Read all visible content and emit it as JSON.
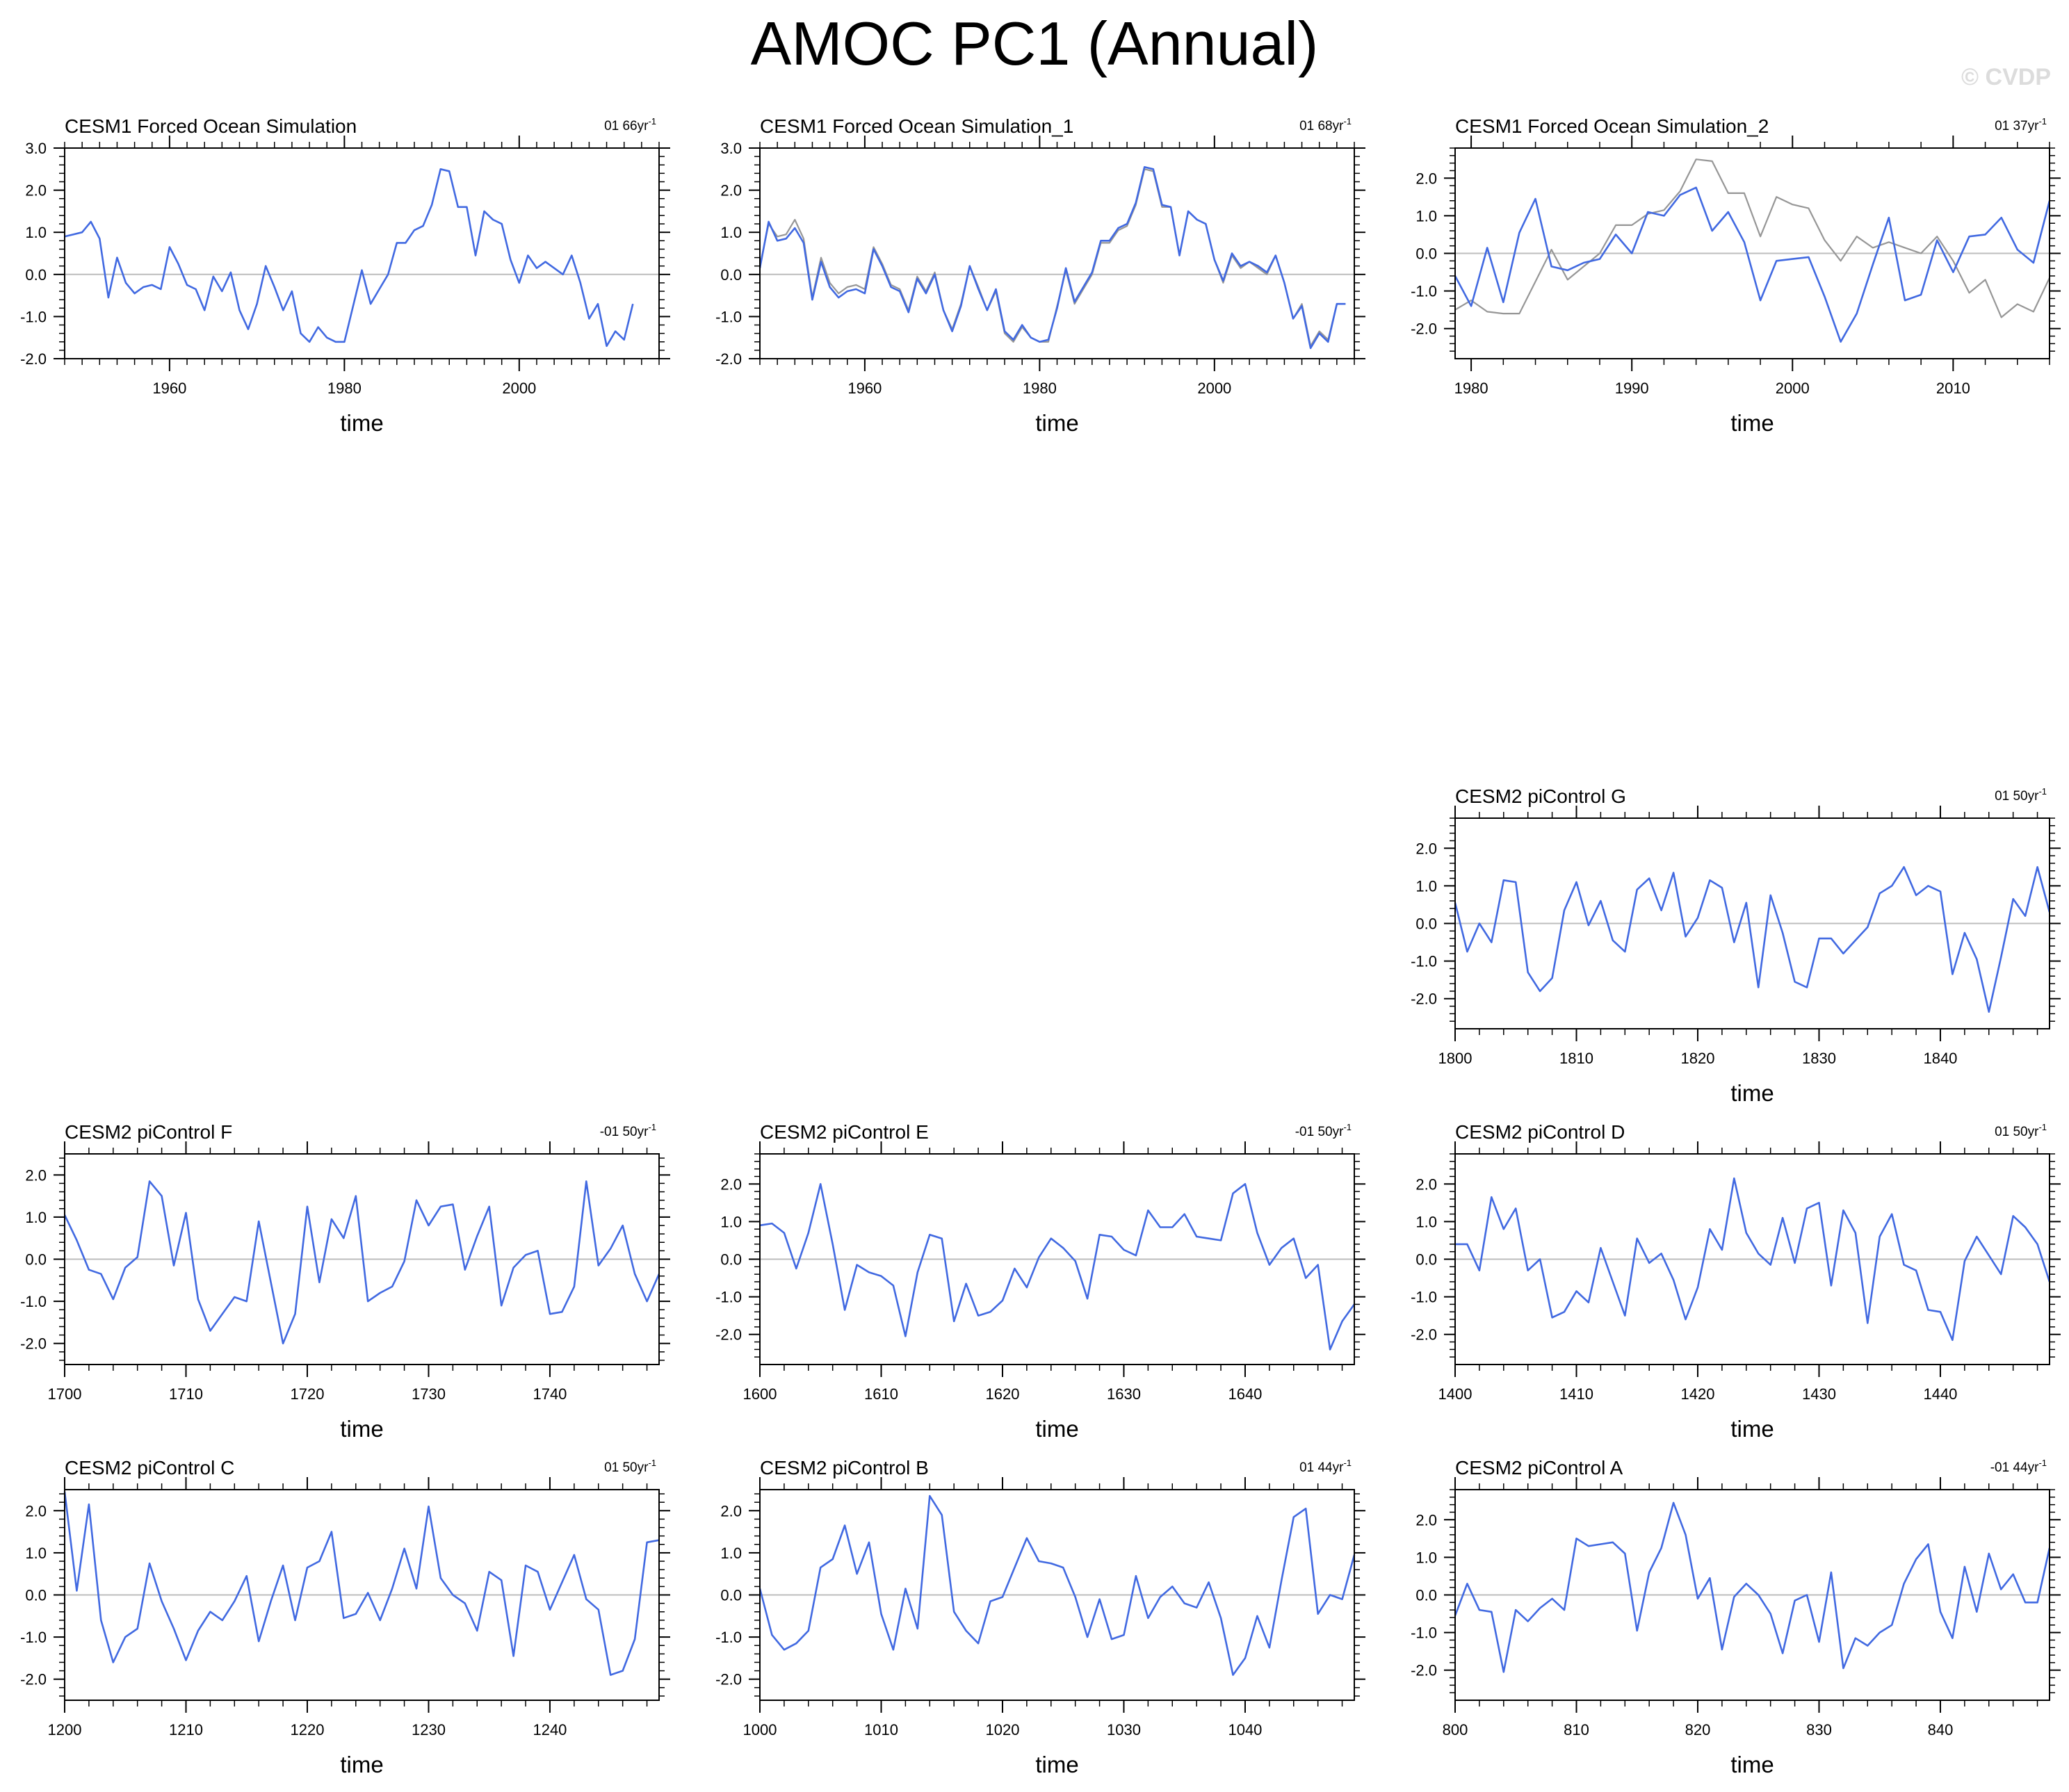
{
  "title": "AMOC PC1 (Annual)",
  "watermark": "© CVDP",
  "colors": {
    "main": "#4169e1",
    "reference": "#969696",
    "zero": "#bdbdbd"
  },
  "chart_data": [
    {
      "type": "line",
      "title": "CESM1 Forced Ocean Simulation",
      "rate_label": "01 66yr",
      "rate_suffix": "-1",
      "xlabel": "time",
      "ylabel": "",
      "xlim": [
        1948,
        2016
      ],
      "ylim": [
        -2.0,
        3.0
      ],
      "xticks": [
        1960,
        1980,
        2000
      ],
      "xtick_labels": [
        "1960",
        "1980",
        "2000"
      ],
      "yticks": [
        -2.0,
        -1.0,
        0.0,
        1.0,
        2.0,
        3.0
      ],
      "ytick_labels": [
        "-2.0",
        "-1.0",
        "0.0",
        "1.0",
        "2.0",
        "3.0"
      ],
      "x_start": 1948,
      "series": [
        {
          "name": "PC1",
          "values": [
            0.9,
            0.95,
            1.0,
            1.25,
            0.85,
            -0.55,
            0.4,
            -0.2,
            -0.45,
            -0.3,
            -0.25,
            -0.35,
            0.65,
            0.25,
            -0.25,
            -0.35,
            -0.85,
            -0.05,
            -0.4,
            0.05,
            -0.85,
            -1.3,
            -0.7,
            0.2,
            -0.3,
            -0.85,
            -0.4,
            -1.4,
            -1.6,
            -1.25,
            -1.5,
            -1.6,
            -1.6,
            -0.75,
            0.1,
            -0.7,
            -0.35,
            0.0,
            0.75,
            0.75,
            1.05,
            1.15,
            1.65,
            2.5,
            2.45,
            1.6,
            1.6,
            0.45,
            1.5,
            1.3,
            1.2,
            0.35,
            -0.2,
            0.45,
            0.15,
            0.3,
            0.15,
            0.0,
            0.45,
            -0.2,
            -1.05,
            -0.7,
            -1.7,
            -1.35,
            -1.55,
            -0.7
          ]
        }
      ]
    },
    {
      "type": "line",
      "title": "CESM1 Forced Ocean Simulation_1",
      "rate_label": "01 68yr",
      "rate_suffix": "-1",
      "xlabel": "time",
      "ylabel": "",
      "xlim": [
        1948,
        2016
      ],
      "ylim": [
        -2.0,
        3.0
      ],
      "xticks": [
        1960,
        1980,
        2000
      ],
      "xtick_labels": [
        "1960",
        "1980",
        "2000"
      ],
      "yticks": [
        -2.0,
        -1.0,
        0.0,
        1.0,
        2.0,
        3.0
      ],
      "ytick_labels": [
        "-2.0",
        "-1.0",
        "0.0",
        "1.0",
        "2.0",
        "3.0"
      ],
      "x_start": 1948,
      "series": [
        {
          "name": "reference",
          "values": [
            0.2,
            1.2,
            0.9,
            0.95,
            1.3,
            0.85,
            -0.55,
            0.4,
            -0.2,
            -0.45,
            -0.3,
            -0.25,
            -0.35,
            0.65,
            0.25,
            -0.25,
            -0.35,
            -0.85,
            -0.05,
            -0.4,
            0.05,
            -0.85,
            -1.3,
            -0.7,
            0.2,
            -0.3,
            -0.85,
            -0.4,
            -1.4,
            -1.6,
            -1.25,
            -1.5,
            -1.6,
            -1.6,
            -0.75,
            0.1,
            -0.7,
            -0.35,
            0.0,
            0.75,
            0.75,
            1.05,
            1.15,
            1.65,
            2.5,
            2.45,
            1.6,
            1.6,
            0.45,
            1.5,
            1.3,
            1.2,
            0.35,
            -0.2,
            0.45,
            0.15,
            0.3,
            0.15,
            0.0,
            0.45,
            -0.2,
            -1.05,
            -0.7,
            -1.7,
            -1.35,
            -1.55,
            -0.7,
            -0.7
          ]
        },
        {
          "name": "PC1",
          "values": [
            0.15,
            1.25,
            0.8,
            0.85,
            1.1,
            0.75,
            -0.6,
            0.3,
            -0.3,
            -0.55,
            -0.4,
            -0.35,
            -0.45,
            0.6,
            0.2,
            -0.3,
            -0.4,
            -0.9,
            -0.1,
            -0.45,
            0.0,
            -0.85,
            -1.35,
            -0.75,
            0.2,
            -0.35,
            -0.85,
            -0.35,
            -1.35,
            -1.55,
            -1.2,
            -1.5,
            -1.6,
            -1.55,
            -0.8,
            0.15,
            -0.65,
            -0.3,
            0.05,
            0.8,
            0.8,
            1.1,
            1.2,
            1.7,
            2.55,
            2.5,
            1.65,
            1.6,
            0.45,
            1.5,
            1.3,
            1.2,
            0.35,
            -0.15,
            0.5,
            0.2,
            0.3,
            0.2,
            0.05,
            0.45,
            -0.2,
            -1.05,
            -0.75,
            -1.75,
            -1.4,
            -1.6,
            -0.7,
            -0.7
          ]
        }
      ]
    },
    {
      "type": "line",
      "title": "CESM1 Forced Ocean Simulation_2",
      "rate_label": "01 37yr",
      "rate_suffix": "-1",
      "xlabel": "time",
      "ylabel": "",
      "xlim": [
        1979,
        2016
      ],
      "ylim": [
        -2.8,
        2.8
      ],
      "xticks": [
        1980,
        1990,
        2000,
        2010
      ],
      "xtick_labels": [
        "1980",
        "1990",
        "2000",
        "2010"
      ],
      "yticks": [
        -2.0,
        -1.0,
        0.0,
        1.0,
        2.0
      ],
      "ytick_labels": [
        "-2.0",
        "-1.0",
        "0.0",
        "1.0",
        "2.0"
      ],
      "x_start": 1979,
      "series": [
        {
          "name": "reference",
          "values": [
            -1.5,
            -1.25,
            -1.55,
            -1.6,
            -1.6,
            -0.75,
            0.1,
            -0.7,
            -0.35,
            0.0,
            0.75,
            0.75,
            1.05,
            1.15,
            1.65,
            2.5,
            2.45,
            1.6,
            1.6,
            0.45,
            1.5,
            1.3,
            1.2,
            0.35,
            -0.2,
            0.45,
            0.15,
            0.3,
            0.15,
            0.0,
            0.45,
            -0.2,
            -1.05,
            -0.7,
            -1.7,
            -1.35,
            -1.55,
            -0.65
          ]
        },
        {
          "name": "PC1",
          "values": [
            -0.6,
            -1.4,
            0.15,
            -1.3,
            0.55,
            1.45,
            -0.35,
            -0.45,
            -0.25,
            -0.15,
            0.5,
            0.0,
            1.1,
            1.0,
            1.55,
            1.75,
            0.6,
            1.1,
            0.3,
            -1.25,
            -0.2,
            -0.15,
            -0.1,
            -1.15,
            -2.35,
            -1.6,
            -0.3,
            0.95,
            -1.25,
            -1.1,
            0.35,
            -0.5,
            0.45,
            0.5,
            0.95,
            0.1,
            -0.25,
            1.4
          ]
        }
      ]
    },
    {
      "type": "line",
      "title": "CESM2 piControl G",
      "rate_label": "01 50yr",
      "rate_suffix": "-1",
      "xlabel": "time",
      "ylabel": "",
      "xlim": [
        1800,
        1849
      ],
      "ylim": [
        -2.8,
        2.8
      ],
      "xticks": [
        1800,
        1810,
        1820,
        1830,
        1840
      ],
      "xtick_labels": [
        "1800",
        "1810",
        "1820",
        "1830",
        "1840"
      ],
      "yticks": [
        -2.0,
        -1.0,
        0.0,
        1.0,
        2.0
      ],
      "ytick_labels": [
        "-2.0",
        "-1.0",
        "0.0",
        "1.0",
        "2.0"
      ],
      "x_start": 1800,
      "series": [
        {
          "name": "PC1",
          "values": [
            0.55,
            -0.75,
            0.0,
            -0.5,
            1.15,
            1.1,
            -1.3,
            -1.8,
            -1.45,
            0.35,
            1.1,
            -0.05,
            0.6,
            -0.45,
            -0.75,
            0.9,
            1.2,
            0.35,
            1.35,
            -0.35,
            0.15,
            1.15,
            0.95,
            -0.5,
            0.55,
            -1.7,
            0.75,
            -0.25,
            -1.55,
            -1.7,
            -0.4,
            -0.4,
            -0.8,
            -0.45,
            -0.1,
            0.8,
            1.0,
            1.5,
            0.75,
            1.0,
            0.85,
            -1.35,
            -0.25,
            -0.95,
            -2.35,
            -0.9,
            0.65,
            0.2,
            1.5,
            0.3
          ]
        }
      ]
    },
    {
      "type": "line",
      "title": "CESM2 piControl F",
      "rate_label": "-01 50yr",
      "rate_suffix": "-1",
      "xlabel": "time",
      "ylabel": "",
      "xlim": [
        1700,
        1749
      ],
      "ylim": [
        -2.5,
        2.5
      ],
      "xticks": [
        1700,
        1710,
        1720,
        1730,
        1740
      ],
      "xtick_labels": [
        "1700",
        "1710",
        "1720",
        "1730",
        "1740"
      ],
      "yticks": [
        -2.0,
        -1.0,
        0.0,
        1.0,
        2.0
      ],
      "ytick_labels": [
        "-2.0",
        "-1.0",
        "0.0",
        "1.0",
        "2.0"
      ],
      "x_start": 1700,
      "series": [
        {
          "name": "PC1",
          "values": [
            1.05,
            0.45,
            -0.25,
            -0.35,
            -0.95,
            -0.2,
            0.05,
            1.85,
            1.5,
            -0.15,
            1.1,
            -0.95,
            -1.7,
            -1.3,
            -0.9,
            -1.0,
            0.9,
            -0.55,
            -2.0,
            -1.3,
            1.25,
            -0.55,
            0.95,
            0.5,
            1.5,
            -1.0,
            -0.8,
            -0.65,
            -0.05,
            1.4,
            0.8,
            1.25,
            1.3,
            -0.25,
            0.55,
            1.25,
            -1.1,
            -0.2,
            0.1,
            0.2,
            -1.3,
            -1.25,
            -0.65,
            1.85,
            -0.15,
            0.25,
            0.8,
            -0.35,
            -1.0,
            -0.35
          ]
        }
      ]
    },
    {
      "type": "line",
      "title": "CESM2 piControl E",
      "rate_label": "-01 50yr",
      "rate_suffix": "-1",
      "xlabel": "time",
      "ylabel": "",
      "xlim": [
        1600,
        1649
      ],
      "ylim": [
        -2.8,
        2.8
      ],
      "xticks": [
        1600,
        1610,
        1620,
        1630,
        1640
      ],
      "xtick_labels": [
        "1600",
        "1610",
        "1620",
        "1630",
        "1640"
      ],
      "yticks": [
        -2.0,
        -1.0,
        0.0,
        1.0,
        2.0
      ],
      "ytick_labels": [
        "-2.0",
        "-1.0",
        "0.0",
        "1.0",
        "2.0"
      ],
      "x_start": 1600,
      "series": [
        {
          "name": "PC1",
          "values": [
            0.9,
            0.95,
            0.7,
            -0.25,
            0.7,
            2.0,
            0.4,
            -1.35,
            -0.15,
            -0.35,
            -0.45,
            -0.7,
            -2.05,
            -0.35,
            0.65,
            0.55,
            -1.65,
            -0.65,
            -1.5,
            -1.4,
            -1.1,
            -0.25,
            -0.75,
            0.05,
            0.55,
            0.3,
            -0.05,
            -1.05,
            0.65,
            0.6,
            0.25,
            0.1,
            1.3,
            0.85,
            0.85,
            1.2,
            0.6,
            0.55,
            0.5,
            1.75,
            2.0,
            0.7,
            -0.15,
            0.3,
            0.55,
            -0.5,
            -0.15,
            -2.4,
            -1.65,
            -1.2
          ]
        }
      ]
    },
    {
      "type": "line",
      "title": "CESM2 piControl D",
      "rate_label": "01 50yr",
      "rate_suffix": "-1",
      "xlabel": "time",
      "ylabel": "",
      "xlim": [
        1400,
        1449
      ],
      "ylim": [
        -2.8,
        2.8
      ],
      "xticks": [
        1400,
        1410,
        1420,
        1430,
        1440
      ],
      "xtick_labels": [
        "1400",
        "1410",
        "1420",
        "1430",
        "1440"
      ],
      "yticks": [
        -2.0,
        -1.0,
        0.0,
        1.0,
        2.0
      ],
      "ytick_labels": [
        "-2.0",
        "-1.0",
        "0.0",
        "1.0",
        "2.0"
      ],
      "x_start": 1400,
      "series": [
        {
          "name": "PC1",
          "values": [
            0.4,
            0.4,
            -0.3,
            1.65,
            0.8,
            1.35,
            -0.3,
            0.0,
            -1.55,
            -1.4,
            -0.85,
            -1.15,
            0.3,
            -0.6,
            -1.5,
            0.55,
            -0.1,
            0.15,
            -0.55,
            -1.6,
            -0.75,
            0.8,
            0.25,
            2.15,
            0.7,
            0.15,
            -0.15,
            1.1,
            -0.1,
            1.35,
            1.5,
            -0.7,
            1.3,
            0.7,
            -1.7,
            0.6,
            1.2,
            -0.15,
            -0.3,
            -1.35,
            -1.4,
            -2.15,
            -0.05,
            0.6,
            0.1,
            -0.4,
            1.15,
            0.85,
            0.4,
            -0.6
          ]
        }
      ]
    },
    {
      "type": "line",
      "title": "CESM2 piControl C",
      "rate_label": "01 50yr",
      "rate_suffix": "-1",
      "xlabel": "time",
      "ylabel": "",
      "xlim": [
        1200,
        1249
      ],
      "ylim": [
        -2.5,
        2.5
      ],
      "xticks": [
        1200,
        1210,
        1220,
        1230,
        1240
      ],
      "xtick_labels": [
        "1200",
        "1210",
        "1220",
        "1230",
        "1240"
      ],
      "yticks": [
        -2.0,
        -1.0,
        0.0,
        1.0,
        2.0
      ],
      "ytick_labels": [
        "-2.0",
        "-1.0",
        "0.0",
        "1.0",
        "2.0"
      ],
      "x_start": 1200,
      "series": [
        {
          "name": "PC1",
          "values": [
            2.45,
            0.1,
            2.15,
            -0.6,
            -1.6,
            -1.0,
            -0.8,
            0.75,
            -0.15,
            -0.8,
            -1.55,
            -0.85,
            -0.4,
            -0.6,
            -0.15,
            0.45,
            -1.1,
            -0.15,
            0.7,
            -0.6,
            0.65,
            0.8,
            1.5,
            -0.55,
            -0.45,
            0.05,
            -0.6,
            0.15,
            1.1,
            0.15,
            2.1,
            0.4,
            0.0,
            -0.2,
            -0.85,
            0.55,
            0.35,
            -1.45,
            0.7,
            0.55,
            -0.35,
            0.3,
            0.95,
            -0.1,
            -0.35,
            -1.9,
            -1.8,
            -1.05,
            1.25,
            1.3
          ]
        }
      ]
    },
    {
      "type": "line",
      "title": "CESM2 piControl B",
      "rate_label": "01 44yr",
      "rate_suffix": "-1",
      "xlabel": "time",
      "ylabel": "",
      "xlim": [
        1000,
        1049
      ],
      "ylim": [
        -2.5,
        2.5
      ],
      "xticks": [
        1000,
        1010,
        1020,
        1030,
        1040
      ],
      "xtick_labels": [
        "1000",
        "1010",
        "1020",
        "1030",
        "1040"
      ],
      "yticks": [
        -2.0,
        -1.0,
        0.0,
        1.0,
        2.0
      ],
      "ytick_labels": [
        "-2.0",
        "-1.0",
        "0.0",
        "1.0",
        "2.0"
      ],
      "x_start": 1000,
      "series": [
        {
          "name": "PC1",
          "values": [
            0.15,
            -0.95,
            -1.3,
            -1.15,
            -0.85,
            0.65,
            0.85,
            1.65,
            0.5,
            1.25,
            -0.45,
            -1.3,
            0.15,
            -0.8,
            2.35,
            1.9,
            -0.4,
            -0.85,
            -1.15,
            -0.15,
            -0.05,
            0.65,
            1.35,
            0.8,
            0.75,
            0.65,
            -0.05,
            -1.0,
            -0.1,
            -1.05,
            -0.95,
            0.45,
            -0.55,
            -0.05,
            0.2,
            -0.2,
            -0.3,
            0.3,
            -0.55,
            -1.9,
            -1.5,
            -0.5,
            -1.25,
            0.35,
            1.85,
            2.05,
            -0.45,
            0.0,
            -0.1,
            0.95
          ]
        }
      ]
    },
    {
      "type": "line",
      "title": "CESM2 piControl A",
      "rate_label": "-01 44yr",
      "rate_suffix": "-1",
      "xlabel": "time",
      "ylabel": "",
      "xlim": [
        800,
        849
      ],
      "ylim": [
        -2.8,
        2.8
      ],
      "xticks": [
        800,
        810,
        820,
        830,
        840
      ],
      "xtick_labels": [
        "800",
        "810",
        "820",
        "830",
        "840"
      ],
      "yticks": [
        -2.0,
        -1.0,
        0.0,
        1.0,
        2.0
      ],
      "ytick_labels": [
        "-2.0",
        "-1.0",
        "0.0",
        "1.0",
        "2.0"
      ],
      "x_start": 800,
      "series": [
        {
          "name": "PC1",
          "values": [
            -0.55,
            0.3,
            -0.4,
            -0.45,
            -2.05,
            -0.4,
            -0.7,
            -0.35,
            -0.1,
            -0.4,
            1.5,
            1.3,
            1.35,
            1.4,
            1.1,
            -0.95,
            0.6,
            1.25,
            2.45,
            1.6,
            -0.1,
            0.45,
            -1.45,
            -0.05,
            0.3,
            0.0,
            -0.5,
            -1.55,
            -0.15,
            0.0,
            -1.25,
            0.6,
            -1.95,
            -1.15,
            -1.35,
            -1.0,
            -0.8,
            0.3,
            0.95,
            1.35,
            -0.45,
            -1.15,
            0.75,
            -0.45,
            1.1,
            0.15,
            0.55,
            -0.2,
            -0.2,
            1.25
          ]
        }
      ]
    }
  ]
}
